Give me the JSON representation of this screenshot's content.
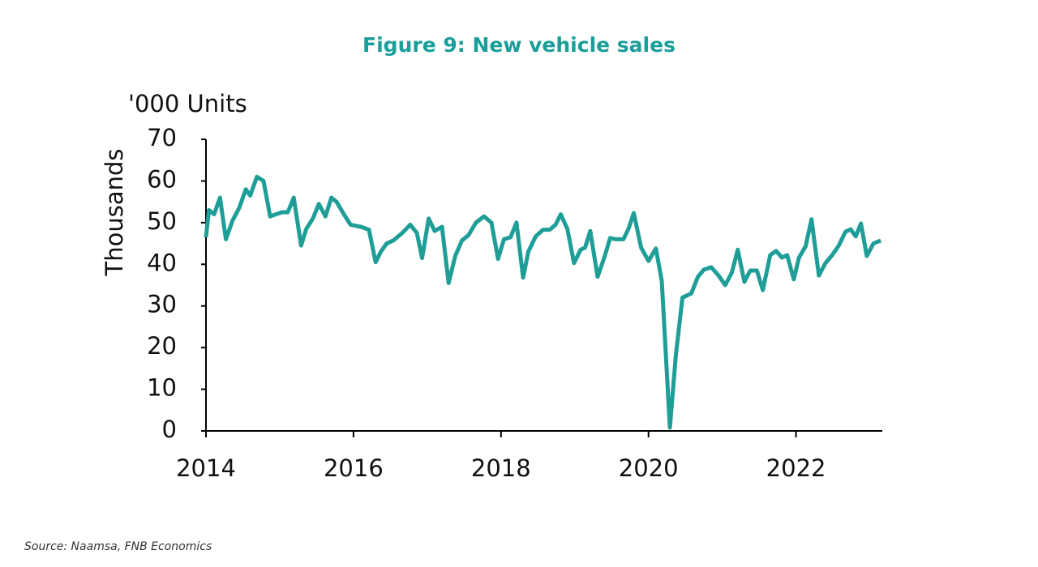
{
  "chart_data": {
    "type": "line",
    "title": "Figure 9: New vehicle sales",
    "y_unit_label": "'000 Units",
    "y_label": "Thousands",
    "source": "Source: Naamsa, FNB Economics",
    "x": [
      2014.0,
      2014.04,
      2014.11,
      2014.19,
      2014.27,
      2014.36,
      2014.45,
      2014.54,
      2014.6,
      2014.69,
      2014.78,
      2014.87,
      2014.95,
      2015.03,
      2015.11,
      2015.19,
      2015.29,
      2015.36,
      2015.45,
      2015.53,
      2015.62,
      2015.7,
      2015.77,
      2015.87,
      2015.96,
      2016.1,
      2016.21,
      2016.3,
      2016.37,
      2016.45,
      2016.54,
      2016.66,
      2016.77,
      2016.86,
      2016.93,
      2017.02,
      2017.1,
      2017.2,
      2017.29,
      2017.38,
      2017.47,
      2017.56,
      2017.66,
      2017.77,
      2017.87,
      2017.96,
      2018.04,
      2018.13,
      2018.21,
      2018.3,
      2018.37,
      2018.47,
      2018.57,
      2018.66,
      2018.74,
      2018.81,
      2018.9,
      2018.99,
      2019.08,
      2019.14,
      2019.21,
      2019.31,
      2019.4,
      2019.48,
      2019.56,
      2019.66,
      2019.73,
      2019.8,
      2019.9,
      2020.0,
      2020.1,
      2020.18,
      2020.29,
      2020.37,
      2020.46,
      2020.58,
      2020.67,
      2020.75,
      2020.85,
      2020.95,
      2021.04,
      2021.13,
      2021.21,
      2021.3,
      2021.38,
      2021.47,
      2021.55,
      2021.65,
      2021.73,
      2021.81,
      2021.88,
      2021.97,
      2022.04,
      2022.13,
      2022.21,
      2022.31,
      2022.4,
      2022.49,
      2022.58,
      2022.67,
      2022.74,
      2022.81,
      2022.88,
      2022.96,
      2023.05,
      2023.15
    ],
    "series": [
      {
        "name": "New vehicle sales",
        "color": "#1f9e98",
        "values": [
          46.5,
          53,
          52,
          56,
          46,
          50.5,
          53.5,
          58,
          56.5,
          61,
          60,
          51.5,
          52,
          52.5,
          52.5,
          56,
          44.5,
          48.5,
          51,
          54.5,
          51.5,
          56,
          55,
          52,
          49.5,
          49,
          48.3,
          40.5,
          43,
          45,
          45.7,
          47.5,
          49.5,
          47.5,
          41.5,
          51,
          48,
          49,
          35.5,
          42,
          45.7,
          47,
          50,
          51.5,
          50,
          41.3,
          46,
          46.5,
          50,
          36.8,
          43,
          46.7,
          48.3,
          48.3,
          49.5,
          52,
          48.5,
          40.3,
          43.5,
          44,
          48,
          37,
          41.6,
          46.3,
          46,
          46,
          48.6,
          52.3,
          44,
          40.8,
          43.8,
          36,
          0.8,
          18,
          32,
          33,
          37,
          38.7,
          39.3,
          37.3,
          35,
          38,
          43.5,
          35.8,
          38.5,
          38.5,
          33.8,
          42.2,
          43.2,
          41.6,
          42.2,
          36.4,
          41.6,
          44.3,
          50.8,
          37.3,
          40.3,
          42.2,
          44.5,
          47.8,
          48.4,
          46.7,
          49.8,
          42,
          45,
          45.7
        ]
      }
    ],
    "xlim": [
      2014,
      2023.17
    ],
    "xticks": [
      2014,
      2016,
      2018,
      2020,
      2022
    ],
    "ylim": [
      0,
      70
    ],
    "yticks": [
      0,
      10,
      20,
      30,
      40,
      50,
      60,
      70
    ]
  }
}
